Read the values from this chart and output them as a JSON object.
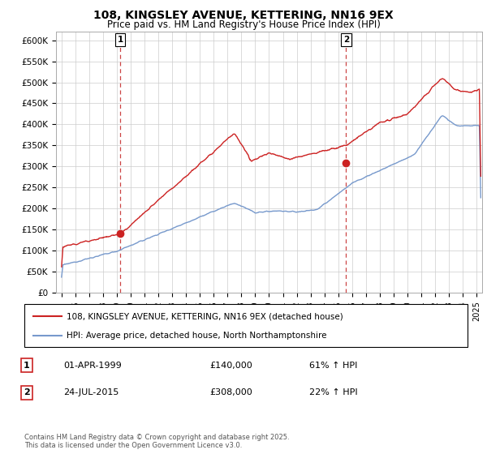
{
  "title_line1": "108, KINGSLEY AVENUE, KETTERING, NN16 9EX",
  "title_line2": "Price paid vs. HM Land Registry's House Price Index (HPI)",
  "ylim": [
    0,
    620000
  ],
  "yticks": [
    0,
    50000,
    100000,
    150000,
    200000,
    250000,
    300000,
    350000,
    400000,
    450000,
    500000,
    550000,
    600000
  ],
  "ytick_labels": [
    "£0",
    "£50K",
    "£100K",
    "£150K",
    "£200K",
    "£250K",
    "£300K",
    "£350K",
    "£400K",
    "£450K",
    "£500K",
    "£550K",
    "£600K"
  ],
  "xlim_start": 1994.6,
  "xlim_end": 2025.4,
  "sale1_x": 1999.25,
  "sale1_y": 140000,
  "sale1_label": "1",
  "sale1_date": "01-APR-1999",
  "sale1_price": "£140,000",
  "sale1_hpi": "61% ↑ HPI",
  "sale2_x": 2015.56,
  "sale2_y": 308000,
  "sale2_label": "2",
  "sale2_date": "24-JUL-2015",
  "sale2_price": "£308,000",
  "sale2_hpi": "22% ↑ HPI",
  "line_color_red": "#cc2222",
  "line_color_blue": "#7799cc",
  "grid_color": "#cccccc",
  "background_color": "#ffffff",
  "legend_label_red": "108, KINGSLEY AVENUE, KETTERING, NN16 9EX (detached house)",
  "legend_label_blue": "HPI: Average price, detached house, North Northamptonshire",
  "footnote": "Contains HM Land Registry data © Crown copyright and database right 2025.\nThis data is licensed under the Open Government Licence v3.0."
}
